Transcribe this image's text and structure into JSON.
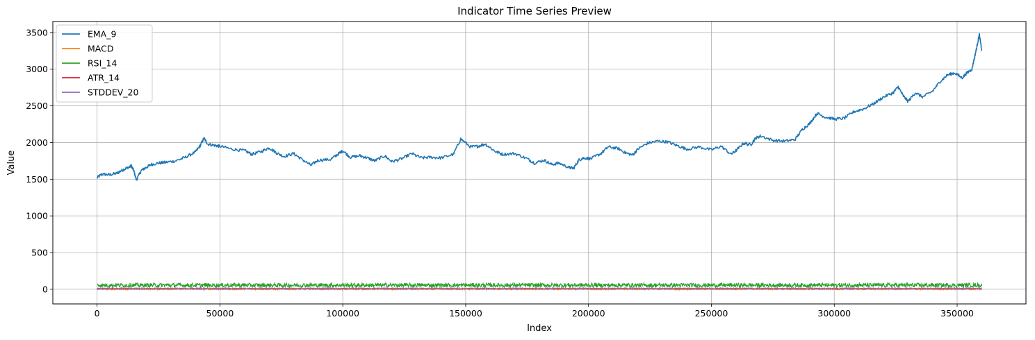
{
  "chart_data": {
    "type": "line",
    "title": "Indicator Time Series Preview",
    "xlabel": "Index",
    "ylabel": "Value",
    "xlim": [
      -18000,
      378000
    ],
    "ylim": [
      -200,
      3650
    ],
    "xticks": [
      0,
      50000,
      100000,
      150000,
      200000,
      250000,
      300000,
      350000
    ],
    "xtick_labels": [
      "0",
      "50000",
      "100000",
      "150000",
      "200000",
      "250000",
      "300000",
      "350000"
    ],
    "yticks": [
      0,
      500,
      1000,
      1500,
      2000,
      2500,
      3000,
      3500
    ],
    "ytick_labels": [
      "0",
      "500",
      "1000",
      "1500",
      "2000",
      "2500",
      "3000",
      "3500"
    ],
    "grid": true,
    "legend_position": "upper-left",
    "series": [
      {
        "name": "EMA_9",
        "color": "#1f77b4",
        "kind": "price",
        "x": [
          0,
          2000,
          5000,
          8000,
          10000,
          12000,
          14000,
          15000,
          16000,
          18000,
          20000,
          22000,
          25000,
          28000,
          32000,
          36000,
          40000,
          42000,
          43500,
          45000,
          48000,
          50000,
          55000,
          60000,
          63000,
          67000,
          70000,
          73000,
          76000,
          80000,
          83000,
          87000,
          90000,
          95000,
          98000,
          100000,
          103000,
          107000,
          110000,
          113000,
          117000,
          120000,
          124000,
          128000,
          132000,
          136000,
          140000,
          145000,
          148000,
          152000,
          155000,
          158000,
          162000,
          165000,
          170000,
          175000,
          178000,
          182000,
          185000,
          188000,
          192000,
          194000,
          196000,
          198000,
          201000,
          205000,
          208000,
          212000,
          215000,
          218000,
          220000,
          224000,
          228000,
          232000,
          236000,
          240000,
          245000,
          250000,
          254000,
          258000,
          260000,
          263000,
          266000,
          268000,
          270000,
          275000,
          280000,
          284000,
          287000,
          290000,
          293000,
          296000,
          300000,
          304000,
          308000,
          312000,
          316000,
          320000,
          324000,
          326000,
          328000,
          330000,
          333000,
          336000,
          340000,
          343000,
          346000,
          349000,
          352000,
          354000,
          356000,
          357000,
          358000,
          359000,
          360000
        ],
        "y": [
          1520,
          1570,
          1560,
          1580,
          1620,
          1650,
          1680,
          1610,
          1490,
          1620,
          1660,
          1700,
          1720,
          1730,
          1750,
          1800,
          1870,
          1960,
          2060,
          1980,
          1960,
          1950,
          1910,
          1890,
          1840,
          1880,
          1930,
          1860,
          1810,
          1850,
          1780,
          1690,
          1760,
          1770,
          1840,
          1890,
          1800,
          1820,
          1790,
          1750,
          1820,
          1740,
          1780,
          1850,
          1790,
          1800,
          1790,
          1840,
          2050,
          1940,
          1950,
          1980,
          1880,
          1840,
          1850,
          1780,
          1720,
          1760,
          1700,
          1720,
          1660,
          1650,
          1760,
          1790,
          1780,
          1850,
          1940,
          1920,
          1860,
          1830,
          1910,
          1990,
          2020,
          2010,
          1960,
          1910,
          1940,
          1900,
          1950,
          1840,
          1890,
          1990,
          1970,
          2060,
          2090,
          2030,
          2020,
          2040,
          2180,
          2260,
          2400,
          2350,
          2320,
          2330,
          2420,
          2460,
          2530,
          2620,
          2680,
          2760,
          2640,
          2560,
          2680,
          2620,
          2700,
          2830,
          2920,
          2950,
          2880,
          2950,
          3000,
          3150,
          3300,
          3480,
          3250
        ]
      },
      {
        "name": "MACD",
        "color": "#ff7f0e",
        "kind": "noise",
        "center": 0,
        "amp": 8
      },
      {
        "name": "RSI_14",
        "color": "#2ca02c",
        "kind": "noise",
        "center": 55,
        "amp": 28
      },
      {
        "name": "ATR_14",
        "color": "#d62728",
        "kind": "noise",
        "center": 8,
        "amp": 5
      },
      {
        "name": "STDDEV_20",
        "color": "#9467bd",
        "kind": "noise",
        "center": 10,
        "amp": 9
      }
    ]
  }
}
